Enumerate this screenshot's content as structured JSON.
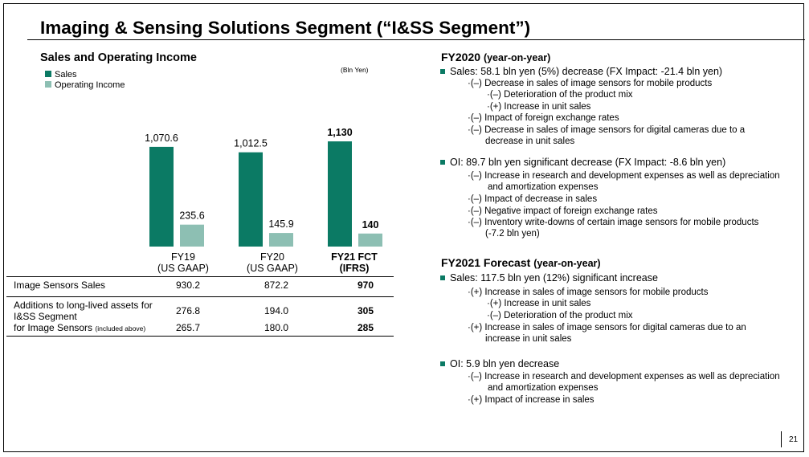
{
  "title": "Imaging & Sensing Solutions Segment (“I&SS Segment”)",
  "colors": {
    "sales": "#0b7a64",
    "oi": "#8dbfb3",
    "bullet": "#0b7a64"
  },
  "chart_title": "Sales and Operating Income",
  "unit": "(Bln Yen)",
  "chart_data": {
    "type": "bar",
    "categories": [
      "FY19 (US GAAP)",
      "FY20 (US GAAP)",
      "FY21 FCT (IFRS)"
    ],
    "series": [
      {
        "name": "Sales",
        "values": [
          1070.6,
          1012.5,
          1130
        ],
        "labels": [
          "1,070.6",
          "1,012.5",
          "1,130"
        ]
      },
      {
        "name": "Operating Income",
        "values": [
          235.6,
          145.9,
          140
        ],
        "labels": [
          "235.6",
          "145.9",
          "140"
        ]
      }
    ],
    "bold_category": 2
  },
  "categories": [
    {
      "line1": "FY19",
      "line2": "(US GAAP)"
    },
    {
      "line1": "FY20",
      "line2": "(US GAAP)"
    },
    {
      "line1": "FY21 FCT",
      "line2": "(IFRS)"
    }
  ],
  "table": {
    "image_sensors_sales": {
      "label": "Image Sensors Sales",
      "values": [
        "930.2",
        "872.2",
        "970"
      ]
    },
    "additions": {
      "label_line1": "Additions to long-lived assets for",
      "label_line2": "I&SS Segment",
      "values": [
        "276.8",
        "194.0",
        "305"
      ]
    },
    "for_image_sensors": {
      "label": "for Image Sensors",
      "note": "(included above)",
      "values": [
        "265.7",
        "180.0",
        "285"
      ]
    }
  },
  "fy2020": {
    "head": "FY2020",
    "head_sub": "(year-on-year)",
    "sales": {
      "text": "Sales: 58.1 bln yen (5%) decrease (FX Impact: -21.4 bln yen)",
      "items": [
        "·(–) Decrease in sales of image sensors for mobile products",
        "·(–) Deterioration of the product mix",
        "·(+) Increase in unit sales",
        "·(–) Impact of foreign exchange rates",
        "·(–) Decrease in sales of image sensors for digital cameras due to a",
        "decrease in unit sales"
      ]
    },
    "oi": {
      "text": "OI: 89.7 bln yen significant decrease (FX Impact: -8.6 bln yen)",
      "items": [
        "·(–) Increase in research and development expenses as well as depreciation",
        "and amortization expenses",
        "·(–) Impact of decrease in sales",
        "·(–) Negative impact of foreign exchange rates",
        "·(–) Inventory write-downs of certain image sensors for mobile products",
        "(-7.2 bln yen)"
      ]
    }
  },
  "fy2021": {
    "head": "FY2021 Forecast",
    "head_sub": "(year-on-year)",
    "sales": {
      "text": "Sales: 117.5 bln yen (12%) significant increase",
      "items": [
        "·(+) Increase in sales of image sensors for mobile products",
        "·(+) Increase in unit sales",
        "·(–) Deterioration of the product mix",
        "·(+) Increase in sales of image sensors for digital cameras due to an",
        "increase in unit sales"
      ]
    },
    "oi": {
      "text": "OI: 5.9 bln yen decrease",
      "items": [
        "·(–) Increase in research and development expenses as well as depreciation",
        "and amortization expenses",
        "·(+) Impact of increase in sales"
      ]
    }
  },
  "page_number": "21"
}
